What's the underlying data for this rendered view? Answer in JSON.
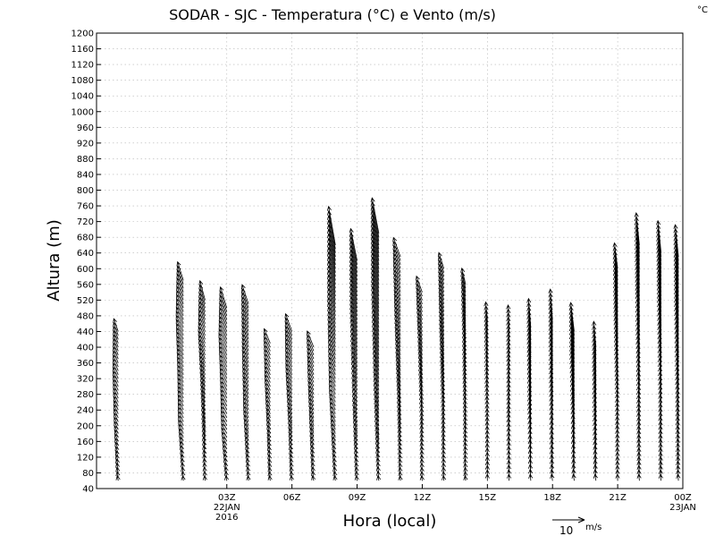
{
  "chart_data": {
    "type": "wind-profile",
    "title": "SODAR - SJC - Temperatura (°C) e Vento (m/s)",
    "unit_label": "°C",
    "xlabel": "Hora (local)",
    "ylabel": "Altura (m)",
    "ylim": [
      40,
      1200
    ],
    "y_ticks": [
      40,
      80,
      120,
      160,
      200,
      240,
      280,
      320,
      360,
      400,
      440,
      480,
      520,
      560,
      600,
      640,
      680,
      720,
      760,
      800,
      840,
      880,
      920,
      960,
      1000,
      1040,
      1080,
      1120,
      1160,
      1200
    ],
    "xlim_hours": [
      -3,
      24
    ],
    "x_ticks": [
      {
        "hour": 3,
        "lines": [
          "03Z",
          "22JAN",
          "2016"
        ]
      },
      {
        "hour": 6,
        "lines": [
          "06Z"
        ]
      },
      {
        "hour": 9,
        "lines": [
          "09Z"
        ]
      },
      {
        "hour": 12,
        "lines": [
          "12Z"
        ]
      },
      {
        "hour": 15,
        "lines": [
          "15Z"
        ]
      },
      {
        "hour": 18,
        "lines": [
          "18Z"
        ]
      },
      {
        "hour": 21,
        "lines": [
          "21Z"
        ]
      },
      {
        "hour": 24,
        "lines": [
          "00Z",
          "23JAN"
        ]
      }
    ],
    "grid": true,
    "reference_vector": {
      "speed": 10,
      "label": "10",
      "unit": "m/s"
    },
    "series": [
      {
        "hour": -2,
        "top": 440,
        "profile": [
          [
            0.3,
            1.5
          ],
          [
            1.2,
            2.5
          ],
          [
            1.6,
            3.5
          ],
          [
            1.4,
            4.0
          ]
        ]
      },
      {
        "hour": 1,
        "top": 570,
        "profile": [
          [
            0.2,
            1.5
          ],
          [
            1.5,
            3.0
          ],
          [
            1.7,
            4.0
          ],
          [
            2.2,
            5.0
          ],
          [
            1.8,
            5.8
          ]
        ]
      },
      {
        "hour": 2,
        "top": 520,
        "profile": [
          [
            0.2,
            1.5
          ],
          [
            0.6,
            3.0
          ],
          [
            1.2,
            4.0
          ],
          [
            2.0,
            5.0
          ],
          [
            1.6,
            6.0
          ]
        ]
      },
      {
        "hour": 3,
        "top": 500,
        "profile": [
          [
            0.3,
            1.5
          ],
          [
            1.6,
            3.0
          ],
          [
            1.9,
            4.0
          ],
          [
            2.4,
            5.5
          ],
          [
            2.0,
            6.5
          ]
        ]
      },
      {
        "hour": 4,
        "top": 510,
        "profile": [
          [
            0.2,
            1.5
          ],
          [
            1.4,
            3.5
          ],
          [
            1.8,
            5.0
          ],
          [
            2.0,
            6.0
          ]
        ]
      },
      {
        "hour": 5,
        "top": 410,
        "profile": [
          [
            0.3,
            1.5
          ],
          [
            0.8,
            2.5
          ],
          [
            1.6,
            3.5
          ],
          [
            1.9,
            4.5
          ]
        ]
      },
      {
        "hour": 6,
        "top": 440,
        "profile": [
          [
            0.3,
            1.5
          ],
          [
            0.9,
            3.0
          ],
          [
            1.8,
            4.5
          ],
          [
            2.0,
            5.5
          ]
        ]
      },
      {
        "hour": 7,
        "top": 400,
        "profile": [
          [
            0.4,
            1.5
          ],
          [
            1.0,
            3.0
          ],
          [
            1.6,
            4.0
          ],
          [
            2.0,
            5.0
          ]
        ]
      },
      {
        "hour": 8,
        "top": 660,
        "profile": [
          [
            0.3,
            1.5
          ],
          [
            1.8,
            4.0
          ],
          [
            2.2,
            8.0
          ],
          [
            2.1,
            12.0
          ]
        ]
      },
      {
        "hour": 9,
        "top": 620,
        "profile": [
          [
            0.3,
            1.5
          ],
          [
            1.2,
            4.0
          ],
          [
            1.9,
            8.0
          ],
          [
            2.0,
            10.0
          ]
        ]
      },
      {
        "hour": 10,
        "top": 690,
        "profile": [
          [
            0.3,
            1.5
          ],
          [
            1.3,
            5.0
          ],
          [
            2.0,
            9.0
          ],
          [
            2.1,
            11.0
          ]
        ]
      },
      {
        "hour": 11,
        "top": 630,
        "profile": [
          [
            0.2,
            1.5
          ],
          [
            0.7,
            3.5
          ],
          [
            1.6,
            5.0
          ],
          [
            2.2,
            6.0
          ]
        ]
      },
      {
        "hour": 12,
        "top": 540,
        "profile": [
          [
            0.2,
            1.5
          ],
          [
            0.3,
            3.0
          ],
          [
            1.0,
            4.0
          ],
          [
            1.8,
            5.0
          ]
        ]
      },
      {
        "hour": 13,
        "top": 600,
        "profile": [
          [
            0.2,
            1.5
          ],
          [
            0.4,
            3.5
          ],
          [
            1.1,
            4.5
          ],
          [
            1.6,
            5.0
          ]
        ]
      },
      {
        "hour": 14,
        "top": 560,
        "profile": [
          [
            0.2,
            1.5
          ],
          [
            0.3,
            3.0
          ],
          [
            0.6,
            4.0
          ],
          [
            1.2,
            5.0
          ]
        ]
      },
      {
        "hour": 15,
        "top": 470,
        "profile": [
          [
            0.0,
            2.0
          ],
          [
            0.1,
            4.0
          ],
          [
            0.3,
            5.0
          ],
          [
            0.5,
            5.5
          ]
        ]
      },
      {
        "hour": 16,
        "top": 450,
        "profile": [
          [
            0.1,
            2.0
          ],
          [
            0.2,
            5.0
          ],
          [
            0.2,
            6.5
          ],
          [
            0.3,
            7.0
          ]
        ]
      },
      {
        "hour": 17,
        "top": 450,
        "profile": [
          [
            0.2,
            2.0
          ],
          [
            0.4,
            6.0
          ],
          [
            0.6,
            8.0
          ],
          [
            0.7,
            9.0
          ]
        ]
      },
      {
        "hour": 18,
        "top": 470,
        "profile": [
          [
            0.3,
            2.0
          ],
          [
            0.4,
            6.0
          ],
          [
            0.6,
            8.5
          ],
          [
            0.7,
            9.5
          ]
        ]
      },
      {
        "hour": 19,
        "top": 440,
        "profile": [
          [
            0.3,
            2.0
          ],
          [
            0.5,
            6.0
          ],
          [
            0.9,
            8.5
          ],
          [
            1.1,
            9.0
          ]
        ]
      },
      {
        "hour": 20,
        "top": 400,
        "profile": [
          [
            0.3,
            2.0
          ],
          [
            0.4,
            5.0
          ],
          [
            0.6,
            7.0
          ],
          [
            0.7,
            8.0
          ]
        ]
      },
      {
        "hour": 21,
        "top": 600,
        "profile": [
          [
            0.1,
            2.0
          ],
          [
            0.2,
            5.0
          ],
          [
            0.7,
            7.0
          ],
          [
            1.0,
            8.0
          ]
        ]
      },
      {
        "hour": 22,
        "top": 660,
        "profile": [
          [
            0.2,
            2.0
          ],
          [
            0.3,
            5.0
          ],
          [
            0.7,
            9.0
          ],
          [
            1.0,
            10.0
          ]
        ]
      },
      {
        "hour": 23,
        "top": 640,
        "profile": [
          [
            0.2,
            2.0
          ],
          [
            0.3,
            5.0
          ],
          [
            0.7,
            9.0
          ],
          [
            1.0,
            10.0
          ]
        ]
      },
      {
        "hour": 23.8,
        "top": 630,
        "profile": [
          [
            0.2,
            2.0
          ],
          [
            0.4,
            5.0
          ],
          [
            0.8,
            9.0
          ],
          [
            1.0,
            10.0
          ]
        ]
      }
    ]
  }
}
